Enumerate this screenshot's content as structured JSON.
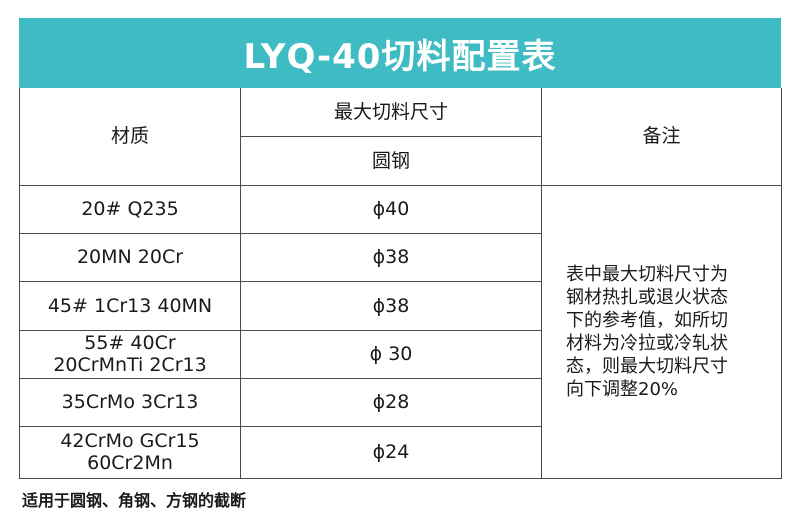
{
  "title": "LYQ-40切料配置表",
  "headers": {
    "material": "材质",
    "max_size": "最大切料尺寸",
    "round_steel": "圆钢",
    "remark": "备注"
  },
  "rows": [
    {
      "material": [
        "20#    Q235"
      ],
      "size": "ϕ40"
    },
    {
      "material": [
        "20MN  20Cr"
      ],
      "size": "ϕ38"
    },
    {
      "material": [
        "45#   1Cr13   40MN"
      ],
      "size": "ϕ38"
    },
    {
      "material": [
        "55# 40Cr",
        "20CrMnTi  2Cr13"
      ],
      "size": "ϕ 30"
    },
    {
      "material": [
        "35CrMo 3Cr13"
      ],
      "size": "ϕ28"
    },
    {
      "material": [
        "42CrMo  GCr15",
        "60Cr2Mn"
      ],
      "size": "ϕ24"
    }
  ],
  "remark_lines": [
    "表中最大切料尺寸为",
    "钢材热扎或退火状态",
    "下的参考值，如所切",
    "材料为冷拉或冷轧状",
    "态，则最大切料尺寸",
    "向下调整20%"
  ],
  "footnote": "适用于圆钢、角钢、方钢的截断",
  "colors": {
    "title_bg": "#3fbcc3",
    "border": "#4a4a4a"
  }
}
